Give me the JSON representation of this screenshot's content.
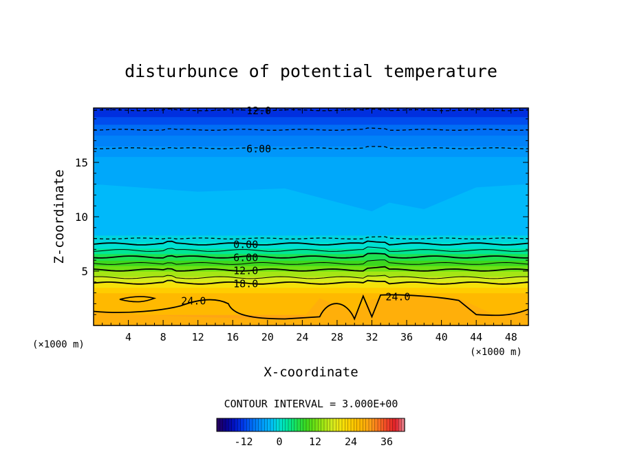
{
  "chart_data": {
    "type": "heatmap",
    "title": "disturbunce of potential temperature",
    "xlabel": "X-coordinate",
    "ylabel": "Z-coordinate",
    "x_unit_left": "(×1000 m)",
    "x_unit_right": "(×1000 m)",
    "xlim": [
      0,
      50
    ],
    "ylim": [
      0,
      20
    ],
    "xticks": [
      "4",
      "8",
      "12",
      "16",
      "20",
      "24",
      "28",
      "32",
      "36",
      "40",
      "44",
      "48"
    ],
    "yticks": [
      "5",
      "10",
      "15"
    ],
    "contour_interval_text": "CONTOUR INTERVAL = 3.000E+00",
    "colorbar": {
      "ticks": [
        "-12",
        "0",
        "12",
        "24",
        "36"
      ],
      "range": [
        -21,
        42
      ]
    },
    "contour_labels": [
      {
        "text": "12.0",
        "x": 19,
        "z": 19.8
      },
      {
        "text": "6.00",
        "x": 19,
        "z": 16.3
      },
      {
        "text": "0.00",
        "x": 17.5,
        "z": 7.5
      },
      {
        "text": "6.00",
        "x": 17.5,
        "z": 6.3
      },
      {
        "text": "12.0",
        "x": 17.5,
        "z": 5.1
      },
      {
        "text": "18.0",
        "x": 17.5,
        "z": 3.9
      },
      {
        "text": "24.0",
        "x": 11.5,
        "z": 2.3
      },
      {
        "text": "24.0",
        "x": 35,
        "z": 2.7
      }
    ],
    "color_bands": [
      {
        "z0": 0,
        "z1": 1,
        "value": 30
      },
      {
        "z0": 1,
        "z1": 3,
        "value": 27
      },
      {
        "z0": 3,
        "z1": 3.5,
        "value": 24
      },
      {
        "z0": 3.5,
        "z1": 4,
        "value": 21
      },
      {
        "z0": 4,
        "z1": 4.5,
        "value": 18
      },
      {
        "z0": 4.5,
        "z1": 5,
        "value": 15
      },
      {
        "z0": 5,
        "z1": 5.5,
        "value": 12
      },
      {
        "z0": 5.5,
        "z1": 6,
        "value": 9
      },
      {
        "z0": 6,
        "z1": 6.6,
        "value": 6
      },
      {
        "z0": 6.6,
        "z1": 7.1,
        "value": 3
      },
      {
        "z0": 7.1,
        "z1": 7.7,
        "value": 0
      },
      {
        "z0": 7.7,
        "z1": 8.3,
        "value": -1
      },
      {
        "z0": 8.3,
        "z1": 13,
        "value": -3
      },
      {
        "z0": 13,
        "z1": 15.5,
        "value": -4.5
      },
      {
        "z0": 15.5,
        "z1": 16.5,
        "value": -6
      },
      {
        "z0": 16.5,
        "z1": 17.5,
        "value": -7.5
      },
      {
        "z0": 17.5,
        "z1": 18.5,
        "value": -9
      },
      {
        "z0": 18.5,
        "z1": 19.2,
        "value": -11
      },
      {
        "z0": 19.2,
        "z1": 20,
        "value": -13
      }
    ],
    "solid_contour_levels_z": [
      3.9,
      4.4,
      5.1,
      5.7,
      6.3,
      6.9,
      7.5
    ],
    "dashed_contour_levels_z": [
      8.0,
      16.3,
      18.0,
      19.8
    ]
  }
}
